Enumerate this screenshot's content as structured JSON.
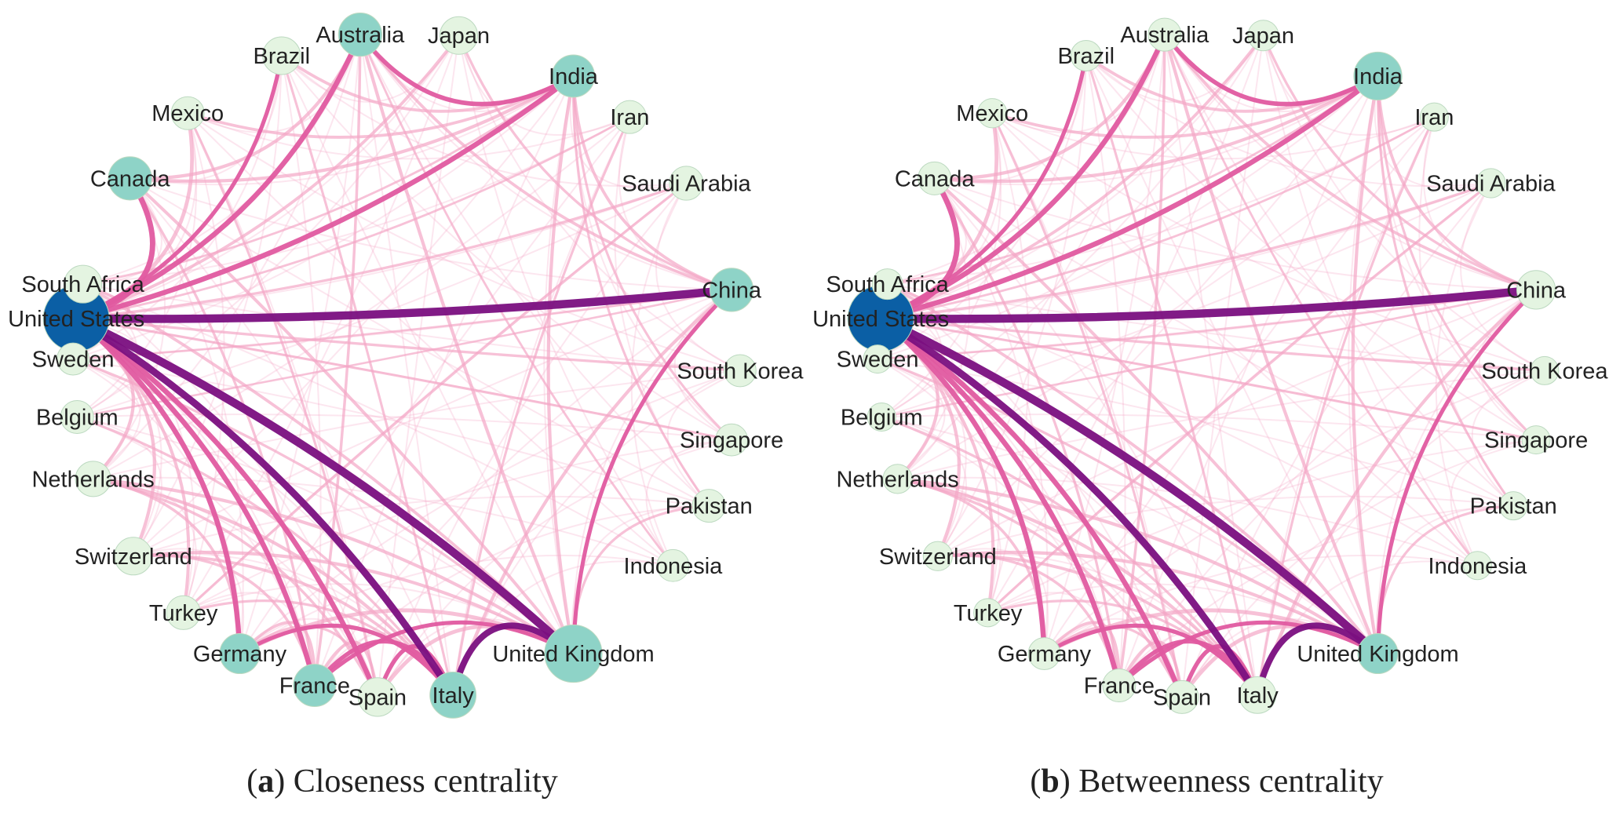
{
  "figure": {
    "panels": [
      {
        "id": "a",
        "letter": "a",
        "caption": "Closeness centrality",
        "node_sizes": {
          "United States": 1.0,
          "Australia": 0.52,
          "Canada": 0.52,
          "India": 0.5,
          "China": 0.52,
          "United Kingdom": 0.82,
          "Italy": 0.58,
          "France": 0.5,
          "Germany": 0.45,
          "Spain": 0.42,
          "Japan": 0.4,
          "Brazil": 0.4,
          "Mexico": 0.3,
          "Saudi Arabia": 0.32,
          "South Africa": 0.4,
          "Switzerland": 0.4,
          "Netherlands": 0.35,
          "Turkey": 0.32,
          "Iran": 0.3,
          "Sweden": 0.28,
          "Belgium": 0.3,
          "Pakistan": 0.3,
          "South Korea": 0.28,
          "Singapore": 0.28,
          "Indonesia": 0.28
        }
      },
      {
        "id": "b",
        "letter": "b",
        "caption": "Betweenness centrality",
        "node_sizes": {
          "United States": 1.0,
          "India": 0.62,
          "China": 0.42,
          "United Kingdom": 0.45,
          "Italy": 0.38,
          "Australia": 0.3,
          "Canada": 0.3,
          "France": 0.3,
          "Spain": 0.3,
          "Germany": 0.28,
          "Japan": 0.25,
          "Brazil": 0.25,
          "Mexico": 0.22,
          "Saudi Arabia": 0.22,
          "South Africa": 0.25,
          "Switzerland": 0.22,
          "Netherlands": 0.22,
          "Turkey": 0.2,
          "Iran": 0.2,
          "Sweden": 0.2,
          "Belgium": 0.2,
          "Pakistan": 0.2,
          "South Korea": 0.2,
          "Singapore": 0.2,
          "Indonesia": 0.2
        }
      }
    ],
    "countries": [
      "United States",
      "Canada",
      "Mexico",
      "Brazil",
      "Australia",
      "Japan",
      "India",
      "Iran",
      "Saudi Arabia",
      "China",
      "South Korea",
      "Singapore",
      "Pakistan",
      "Indonesia",
      "United Kingdom",
      "Italy",
      "Spain",
      "France",
      "Germany",
      "Turkey",
      "Switzerland",
      "Netherlands",
      "Belgium",
      "Sweden",
      "South Africa"
    ],
    "colors": {
      "top_node": "#0b5fa5",
      "high_node": "#8ed3c7",
      "low_node": "#e4f4e1",
      "strong_edge": "#7a0f80",
      "mid_edge": "#e05aa0",
      "weak_edge": "#f4a6c6"
    },
    "edges": [
      {
        "source": "United States",
        "target": "China",
        "weight": 1.0
      },
      {
        "source": "United States",
        "target": "United Kingdom",
        "weight": 1.0
      },
      {
        "source": "United States",
        "target": "Italy",
        "weight": 0.82
      },
      {
        "source": "United Kingdom",
        "target": "Italy",
        "weight": 0.72
      },
      {
        "source": "United States",
        "target": "Germany",
        "weight": 0.55
      },
      {
        "source": "United States",
        "target": "France",
        "weight": 0.55
      },
      {
        "source": "United States",
        "target": "Spain",
        "weight": 0.55
      },
      {
        "source": "United States",
        "target": "Canada",
        "weight": 0.6
      },
      {
        "source": "United States",
        "target": "Australia",
        "weight": 0.55
      },
      {
        "source": "United States",
        "target": "India",
        "weight": 0.55
      },
      {
        "source": "Australia",
        "target": "India",
        "weight": 0.45
      },
      {
        "source": "China",
        "target": "United Kingdom",
        "weight": 0.4
      },
      {
        "source": "United States",
        "target": "Brazil",
        "weight": 0.4
      },
      {
        "source": "United States",
        "target": "Mexico",
        "weight": 0.35
      },
      {
        "source": "Italy",
        "target": "France",
        "weight": 0.45
      },
      {
        "source": "Italy",
        "target": "Spain",
        "weight": 0.45
      },
      {
        "source": "Italy",
        "target": "Germany",
        "weight": 0.4
      },
      {
        "source": "United Kingdom",
        "target": "France",
        "weight": 0.4
      },
      {
        "source": "United Kingdom",
        "target": "Spain",
        "weight": 0.38
      },
      {
        "source": "United Kingdom",
        "target": "Germany",
        "weight": 0.38
      },
      {
        "source": "United Kingdom",
        "target": "Switzerland",
        "weight": 0.3
      },
      {
        "source": "United Kingdom",
        "target": "Netherlands",
        "weight": 0.3
      },
      {
        "source": "United States",
        "target": "Switzerland",
        "weight": 0.3
      },
      {
        "source": "United States",
        "target": "Netherlands",
        "weight": 0.3
      },
      {
        "source": "United States",
        "target": "Turkey",
        "weight": 0.28
      },
      {
        "source": "United States",
        "target": "South Africa",
        "weight": 0.25
      },
      {
        "source": "China",
        "target": "Italy",
        "weight": 0.3
      },
      {
        "source": "China",
        "target": "India",
        "weight": 0.25
      },
      {
        "source": "China",
        "target": "Australia",
        "weight": 0.25
      },
      {
        "source": "India",
        "target": "United Kingdom",
        "weight": 0.3
      },
      {
        "source": "Australia",
        "target": "United Kingdom",
        "weight": 0.3
      },
      {
        "source": "Australia",
        "target": "France",
        "weight": 0.22
      },
      {
        "source": "Canada",
        "target": "India",
        "weight": 0.3
      },
      {
        "source": "Canada",
        "target": "United Kingdom",
        "weight": 0.28
      },
      {
        "source": "Canada",
        "target": "Australia",
        "weight": 0.3
      },
      {
        "source": "Brazil",
        "target": "India",
        "weight": 0.25
      },
      {
        "source": "Mexico",
        "target": "India",
        "weight": 0.25
      },
      {
        "source": "Japan",
        "target": "China",
        "weight": 0.2
      },
      {
        "source": "Saudi Arabia",
        "target": "Turkey",
        "weight": 0.2
      },
      {
        "source": "South Africa",
        "target": "United Kingdom",
        "weight": 0.25
      },
      {
        "source": "Germany",
        "target": "Netherlands",
        "weight": 0.22
      },
      {
        "source": "France",
        "target": "Spain",
        "weight": 0.3
      },
      {
        "source": "Netherlands",
        "target": "Italy",
        "weight": 0.3
      },
      {
        "source": "Netherlands",
        "target": "Spain",
        "weight": 0.22
      },
      {
        "source": "Switzerland",
        "target": "Italy",
        "weight": 0.25
      },
      {
        "source": "Switzerland",
        "target": "France",
        "weight": 0.22
      },
      {
        "source": "Belgium",
        "target": "Italy",
        "weight": 0.2
      },
      {
        "source": "Sweden",
        "target": "United Kingdom",
        "weight": 0.2
      },
      {
        "source": "Iran",
        "target": "Italy",
        "weight": 0.18
      },
      {
        "source": "India",
        "target": "Pakistan",
        "weight": 0.18
      },
      {
        "source": "India",
        "target": "Singapore",
        "weight": 0.18
      },
      {
        "source": "South Korea",
        "target": "United States",
        "weight": 0.2
      },
      {
        "source": "Indonesia",
        "target": "Australia",
        "weight": 0.15
      },
      {
        "source": "Singapore",
        "target": "United States",
        "weight": 0.18
      },
      {
        "source": "Pakistan",
        "target": "United Kingdom",
        "weight": 0.18
      },
      {
        "source": "Japan",
        "target": "United States",
        "weight": 0.25
      },
      {
        "source": "Turkey",
        "target": "Italy",
        "weight": 0.2
      },
      {
        "source": "Germany",
        "target": "Spain",
        "weight": 0.2
      },
      {
        "source": "France",
        "target": "Germany",
        "weight": 0.25
      },
      {
        "source": "Iran",
        "target": "United States",
        "weight": 0.15
      },
      {
        "source": "Saudi Arabia",
        "target": "United States",
        "weight": 0.2
      },
      {
        "source": "Mexico",
        "target": "Spain",
        "weight": 0.18
      },
      {
        "source": "Brazil",
        "target": "Italy",
        "weight": 0.18
      },
      {
        "source": "Canada",
        "target": "France",
        "weight": 0.2
      },
      {
        "source": "Sweden",
        "target": "China",
        "weight": 0.12
      },
      {
        "source": "Belgium",
        "target": "China",
        "weight": 0.12
      },
      {
        "source": "South Africa",
        "target": "India",
        "weight": 0.15
      }
    ]
  }
}
